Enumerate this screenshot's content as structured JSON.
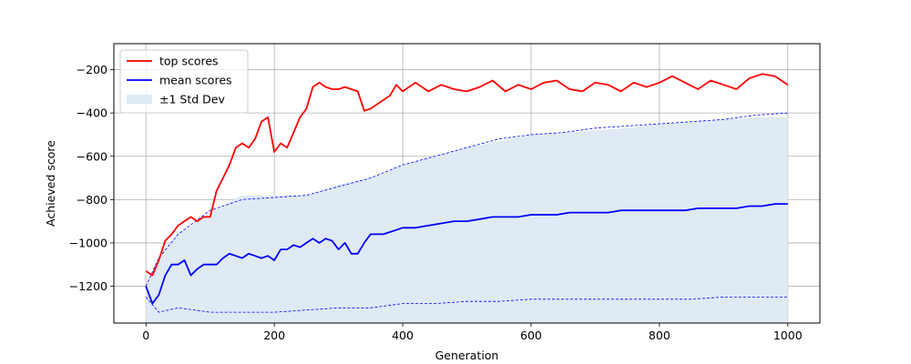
{
  "chart_data": {
    "type": "line",
    "title": "",
    "xlabel": "Generation",
    "ylabel": "Achieved score",
    "xlim": [
      -50,
      1050
    ],
    "ylim": [
      -1370,
      -80
    ],
    "xticks": [
      0,
      200,
      400,
      600,
      800,
      1000
    ],
    "yticks": [
      -1200,
      -1000,
      -800,
      -600,
      -400,
      -200
    ],
    "grid": true,
    "legend_position": "top-left",
    "legend": [
      {
        "label": "top scores",
        "color": "#ff0000",
        "kind": "line"
      },
      {
        "label": "mean scores",
        "color": "#0000ff",
        "kind": "line"
      },
      {
        "label": "±1 Std Dev",
        "color": "#dfeaf4",
        "kind": "patch"
      }
    ],
    "band_envelope": {
      "x": [
        0,
        20,
        50,
        100,
        150,
        200,
        250,
        300,
        350,
        400,
        450,
        500,
        550,
        600,
        650,
        700,
        750,
        800,
        850,
        900,
        950,
        1000
      ],
      "upper": [
        -1200,
        -1060,
        -960,
        -860,
        -780,
        -780,
        -780,
        -730,
        -700,
        -640,
        -600,
        -560,
        -530,
        -500,
        -490,
        -480,
        -470,
        -450,
        -440,
        -430,
        -420,
        -420
      ],
      "lower": [
        -1370,
        -1370,
        -1370,
        -1370,
        -1370,
        -1370,
        -1370,
        -1370,
        -1370,
        -1370,
        -1370,
        -1370,
        -1370,
        -1370,
        -1370,
        -1370,
        -1370,
        -1370,
        -1370,
        -1370,
        -1370,
        -1370
      ]
    },
    "series": [
      {
        "name": "top scores",
        "color": "#ff0000",
        "x": [
          0,
          10,
          20,
          30,
          40,
          50,
          60,
          70,
          80,
          90,
          100,
          110,
          120,
          130,
          140,
          150,
          160,
          170,
          180,
          190,
          200,
          210,
          220,
          230,
          240,
          250,
          260,
          270,
          280,
          290,
          300,
          310,
          320,
          330,
          340,
          350,
          360,
          370,
          380,
          390,
          400,
          420,
          440,
          460,
          480,
          500,
          520,
          540,
          560,
          580,
          600,
          620,
          640,
          660,
          680,
          700,
          720,
          740,
          760,
          780,
          800,
          820,
          840,
          860,
          880,
          900,
          920,
          940,
          960,
          980,
          1000
        ],
        "y": [
          -1130,
          -1150,
          -1080,
          -990,
          -960,
          -920,
          -900,
          -880,
          -900,
          -880,
          -880,
          -760,
          -700,
          -640,
          -560,
          -540,
          -560,
          -520,
          -440,
          -420,
          -580,
          -540,
          -560,
          -490,
          -420,
          -380,
          -280,
          -260,
          -280,
          -290,
          -290,
          -280,
          -290,
          -300,
          -390,
          -380,
          -360,
          -340,
          -320,
          -270,
          -300,
          -260,
          -300,
          -270,
          -290,
          -300,
          -280,
          -250,
          -300,
          -270,
          -290,
          -260,
          -250,
          -290,
          -300,
          -260,
          -270,
          -300,
          -260,
          -280,
          -260,
          -230,
          -260,
          -290,
          -250,
          -270,
          -290,
          -240,
          -220,
          -230,
          -270
        ]
      },
      {
        "name": "mean scores",
        "color": "#0000ff",
        "x": [
          0,
          10,
          20,
          30,
          40,
          50,
          60,
          70,
          80,
          90,
          100,
          110,
          120,
          130,
          140,
          150,
          160,
          170,
          180,
          190,
          200,
          210,
          220,
          230,
          240,
          250,
          260,
          270,
          280,
          290,
          300,
          310,
          320,
          330,
          340,
          350,
          360,
          370,
          380,
          390,
          400,
          420,
          440,
          460,
          480,
          500,
          520,
          540,
          560,
          580,
          600,
          620,
          640,
          660,
          680,
          700,
          720,
          740,
          760,
          780,
          800,
          820,
          840,
          860,
          880,
          900,
          920,
          940,
          960,
          980,
          1000
        ],
        "y": [
          -1200,
          -1280,
          -1240,
          -1150,
          -1100,
          -1100,
          -1080,
          -1150,
          -1120,
          -1100,
          -1100,
          -1100,
          -1070,
          -1050,
          -1060,
          -1070,
          -1050,
          -1060,
          -1070,
          -1060,
          -1080,
          -1030,
          -1030,
          -1010,
          -1020,
          -1000,
          -980,
          -1000,
          -980,
          -990,
          -1030,
          -1000,
          -1050,
          -1050,
          -1000,
          -960,
          -960,
          -960,
          -950,
          -940,
          -930,
          -930,
          -920,
          -910,
          -900,
          -900,
          -890,
          -880,
          -880,
          -880,
          -870,
          -870,
          -870,
          -860,
          -860,
          -860,
          -860,
          -850,
          -850,
          -850,
          -850,
          -850,
          -850,
          -840,
          -840,
          -840,
          -840,
          -830,
          -830,
          -820,
          -820
        ]
      },
      {
        "name": "",
        "style": "dashed",
        "color": "#0000ff",
        "x": [
          0,
          20,
          50,
          100,
          150,
          200,
          250,
          300,
          350,
          400,
          450,
          500,
          550,
          600,
          650,
          700,
          750,
          800,
          850,
          900,
          950,
          1000
        ],
        "y": [
          -1200,
          -1070,
          -960,
          -850,
          -800,
          -790,
          -780,
          -740,
          -700,
          -640,
          -600,
          -560,
          -520,
          -500,
          -490,
          -470,
          -460,
          -450,
          -440,
          -430,
          -410,
          -400
        ]
      },
      {
        "name": "",
        "style": "dashed",
        "color": "#0000ff",
        "x": [
          0,
          20,
          50,
          100,
          150,
          200,
          250,
          300,
          350,
          400,
          450,
          500,
          550,
          600,
          650,
          700,
          750,
          800,
          850,
          900,
          950,
          1000
        ],
        "y": [
          -1250,
          -1320,
          -1300,
          -1320,
          -1320,
          -1320,
          -1310,
          -1300,
          -1300,
          -1280,
          -1280,
          -1270,
          -1270,
          -1260,
          -1260,
          -1260,
          -1260,
          -1260,
          -1260,
          -1250,
          -1250,
          -1250
        ]
      }
    ]
  }
}
